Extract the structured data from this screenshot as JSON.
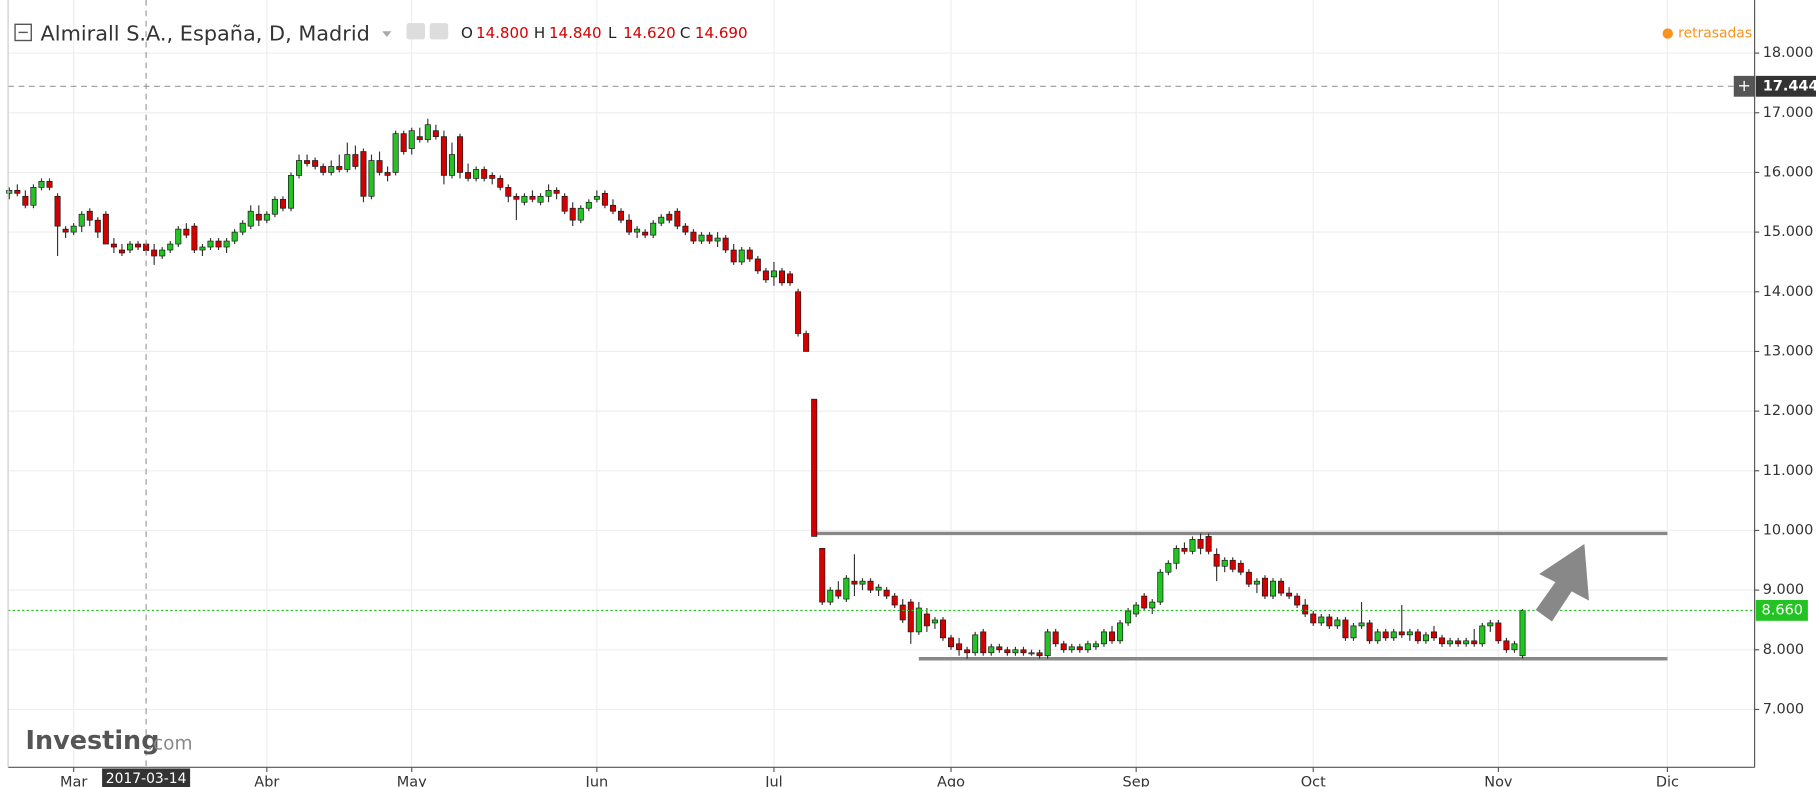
{
  "header": {
    "title": "Almirall S.A., España, D, Madrid",
    "ohlc_labels": [
      "O",
      "H",
      "L",
      "C"
    ],
    "ohlc_values": [
      "14.800",
      "14.840",
      "14.620",
      "14.690"
    ],
    "status": "retrasadas"
  },
  "logo": {
    "brand": "Investing",
    "suffix": ".com"
  },
  "chart_data": {
    "type": "candlestick",
    "categories": [
      null,
      null,
      null,
      null,
      null,
      null,
      null,
      null,
      "Mar",
      null,
      null,
      null,
      null,
      null,
      null,
      null,
      null,
      null,
      null,
      null,
      null,
      null,
      null,
      null,
      null,
      null,
      null,
      null,
      null,
      null,
      null,
      null,
      "Abr",
      null,
      null,
      null,
      null,
      null,
      null,
      null,
      null,
      null,
      null,
      null,
      null,
      null,
      null,
      null,
      null,
      null,
      "May",
      null,
      null,
      null,
      null,
      null,
      null,
      null,
      null,
      null,
      null,
      null,
      null,
      null,
      null,
      null,
      null,
      null,
      null,
      null,
      null,
      null,
      null,
      "Jun",
      null,
      null,
      null,
      null,
      null,
      null,
      null,
      null,
      null,
      null,
      null,
      null,
      null,
      null,
      null,
      null,
      null,
      null,
      null,
      null,
      null,
      "Jul",
      null,
      null,
      null,
      null,
      null,
      null,
      null,
      null,
      null,
      null,
      null,
      null,
      null,
      null,
      null,
      null,
      null,
      null,
      null,
      null,
      null,
      "Ago",
      null,
      null,
      null,
      null,
      null,
      null,
      null,
      null,
      null,
      null,
      null,
      null,
      null,
      null,
      null,
      null,
      null,
      null,
      null,
      null,
      null,
      null,
      "Sep",
      null,
      null,
      null,
      null,
      null,
      null,
      null,
      null,
      null,
      null,
      null,
      null,
      null,
      null,
      null,
      null,
      null,
      null,
      null,
      null,
      null,
      "Oct",
      null,
      null,
      null,
      null,
      null,
      null,
      null,
      null,
      null,
      null,
      null,
      null,
      null,
      null,
      null,
      null,
      null,
      null,
      null,
      null,
      null,
      null,
      "Nov",
      null,
      null,
      null,
      null,
      null,
      null,
      null,
      null,
      null,
      null,
      null,
      null,
      null,
      null,
      null,
      null,
      null,
      null,
      null,
      null,
      "Dic",
      null,
      null,
      null,
      null,
      null,
      null,
      null,
      null,
      null,
      null
    ],
    "ohlc": [
      [
        15.65,
        15.75,
        15.55,
        15.7
      ],
      [
        15.7,
        15.8,
        15.6,
        15.65
      ],
      [
        15.6,
        15.7,
        15.4,
        15.45
      ],
      [
        15.45,
        15.8,
        15.4,
        15.75
      ],
      [
        15.75,
        15.9,
        15.7,
        15.85
      ],
      [
        15.85,
        15.9,
        15.7,
        15.75
      ],
      [
        15.6,
        15.65,
        14.6,
        15.1
      ],
      [
        15.05,
        15.1,
        14.9,
        15.0
      ],
      [
        15.0,
        15.15,
        14.95,
        15.1
      ],
      [
        15.1,
        15.35,
        15.0,
        15.3
      ],
      [
        15.35,
        15.4,
        15.1,
        15.2
      ],
      [
        15.2,
        15.25,
        14.9,
        15.0
      ],
      [
        15.3,
        15.35,
        14.8,
        14.8
      ],
      [
        14.8,
        14.9,
        14.65,
        14.75
      ],
      [
        14.7,
        14.8,
        14.6,
        14.65
      ],
      [
        14.7,
        14.85,
        14.65,
        14.8
      ],
      [
        14.8,
        14.85,
        14.7,
        14.75
      ],
      [
        14.8,
        14.84,
        14.62,
        14.69
      ],
      [
        14.7,
        14.8,
        14.45,
        14.6
      ],
      [
        14.6,
        14.75,
        14.55,
        14.7
      ],
      [
        14.7,
        14.85,
        14.65,
        14.8
      ],
      [
        14.8,
        15.1,
        14.75,
        15.05
      ],
      [
        15.05,
        15.15,
        14.9,
        14.95
      ],
      [
        15.1,
        15.15,
        14.65,
        14.7
      ],
      [
        14.7,
        14.8,
        14.6,
        14.75
      ],
      [
        14.75,
        14.9,
        14.7,
        14.85
      ],
      [
        14.85,
        14.9,
        14.7,
        14.75
      ],
      [
        14.75,
        14.9,
        14.65,
        14.85
      ],
      [
        14.85,
        15.05,
        14.8,
        15.0
      ],
      [
        15.0,
        15.2,
        14.95,
        15.15
      ],
      [
        15.1,
        15.45,
        15.05,
        15.35
      ],
      [
        15.3,
        15.45,
        15.1,
        15.2
      ],
      [
        15.2,
        15.35,
        15.15,
        15.3
      ],
      [
        15.3,
        15.6,
        15.25,
        15.55
      ],
      [
        15.55,
        15.6,
        15.35,
        15.4
      ],
      [
        15.4,
        16.0,
        15.35,
        15.95
      ],
      [
        15.95,
        16.3,
        15.9,
        16.2
      ],
      [
        16.2,
        16.3,
        16.1,
        16.15
      ],
      [
        16.2,
        16.25,
        16.05,
        16.1
      ],
      [
        16.1,
        16.15,
        15.95,
        16.0
      ],
      [
        16.0,
        16.2,
        15.95,
        16.1
      ],
      [
        16.1,
        16.3,
        16.0,
        16.05
      ],
      [
        16.05,
        16.5,
        16.0,
        16.3
      ],
      [
        16.3,
        16.45,
        16.05,
        16.1
      ],
      [
        16.35,
        16.4,
        15.5,
        15.6
      ],
      [
        15.6,
        16.3,
        15.55,
        16.2
      ],
      [
        16.2,
        16.35,
        15.95,
        16.0
      ],
      [
        16.0,
        16.1,
        15.85,
        15.95
      ],
      [
        16.0,
        16.7,
        15.95,
        16.65
      ],
      [
        16.65,
        16.7,
        16.3,
        16.35
      ],
      [
        16.4,
        16.75,
        16.3,
        16.7
      ],
      [
        16.6,
        16.75,
        16.5,
        16.55
      ],
      [
        16.55,
        16.9,
        16.5,
        16.8
      ],
      [
        16.7,
        16.8,
        16.55,
        16.6
      ],
      [
        16.6,
        16.7,
        15.8,
        15.95
      ],
      [
        15.95,
        16.5,
        15.9,
        16.3
      ],
      [
        16.6,
        16.65,
        15.9,
        16.0
      ],
      [
        16.0,
        16.15,
        15.85,
        15.9
      ],
      [
        15.9,
        16.1,
        15.85,
        16.05
      ],
      [
        16.05,
        16.1,
        15.85,
        15.9
      ],
      [
        15.95,
        16.0,
        15.8,
        15.9
      ],
      [
        15.9,
        15.95,
        15.7,
        15.75
      ],
      [
        15.75,
        15.8,
        15.5,
        15.6
      ],
      [
        15.6,
        15.65,
        15.2,
        15.55
      ],
      [
        15.5,
        15.65,
        15.45,
        15.6
      ],
      [
        15.6,
        15.7,
        15.5,
        15.55
      ],
      [
        15.5,
        15.65,
        15.45,
        15.6
      ],
      [
        15.6,
        15.8,
        15.5,
        15.7
      ],
      [
        15.7,
        15.75,
        15.55,
        15.65
      ],
      [
        15.6,
        15.65,
        15.3,
        15.35
      ],
      [
        15.4,
        15.5,
        15.1,
        15.2
      ],
      [
        15.2,
        15.45,
        15.15,
        15.4
      ],
      [
        15.4,
        15.55,
        15.35,
        15.5
      ],
      [
        15.55,
        15.7,
        15.5,
        15.6
      ],
      [
        15.65,
        15.7,
        15.4,
        15.45
      ],
      [
        15.45,
        15.55,
        15.3,
        15.35
      ],
      [
        15.35,
        15.4,
        15.15,
        15.2
      ],
      [
        15.2,
        15.3,
        14.95,
        15.0
      ],
      [
        15.0,
        15.1,
        14.9,
        15.05
      ],
      [
        15.0,
        15.05,
        14.9,
        14.95
      ],
      [
        14.95,
        15.2,
        14.9,
        15.15
      ],
      [
        15.15,
        15.3,
        15.1,
        15.25
      ],
      [
        15.3,
        15.35,
        15.15,
        15.2
      ],
      [
        15.35,
        15.4,
        15.05,
        15.1
      ],
      [
        15.1,
        15.15,
        14.95,
        15.0
      ],
      [
        15.0,
        15.05,
        14.8,
        14.85
      ],
      [
        14.85,
        15.0,
        14.8,
        14.95
      ],
      [
        14.95,
        15.0,
        14.8,
        14.85
      ],
      [
        14.85,
        15.0,
        14.75,
        14.9
      ],
      [
        14.9,
        14.95,
        14.65,
        14.7
      ],
      [
        14.7,
        14.8,
        14.45,
        14.5
      ],
      [
        14.5,
        14.75,
        14.45,
        14.7
      ],
      [
        14.7,
        14.75,
        14.5,
        14.55
      ],
      [
        14.55,
        14.6,
        14.3,
        14.35
      ],
      [
        14.35,
        14.4,
        14.15,
        14.2
      ],
      [
        14.25,
        14.5,
        14.1,
        14.35
      ],
      [
        14.35,
        14.4,
        14.1,
        14.15
      ],
      [
        14.3,
        14.35,
        14.1,
        14.15
      ],
      [
        14.0,
        14.05,
        13.25,
        13.3
      ],
      [
        13.3,
        13.35,
        13.0,
        13.0
      ],
      [
        12.2,
        12.2,
        9.9,
        9.9
      ],
      [
        9.7,
        9.7,
        8.75,
        8.8
      ],
      [
        8.8,
        9.05,
        8.75,
        9.0
      ],
      [
        9.0,
        9.15,
        8.85,
        8.9
      ],
      [
        8.85,
        9.25,
        8.8,
        9.2
      ],
      [
        9.15,
        9.6,
        8.9,
        9.1
      ],
      [
        9.1,
        9.2,
        9.0,
        9.15
      ],
      [
        9.15,
        9.2,
        8.95,
        9.0
      ],
      [
        9.0,
        9.1,
        8.9,
        9.05
      ],
      [
        9.0,
        9.05,
        8.85,
        8.9
      ],
      [
        8.9,
        8.95,
        8.7,
        8.75
      ],
      [
        8.75,
        8.85,
        8.45,
        8.5
      ],
      [
        8.8,
        8.85,
        8.1,
        8.3
      ],
      [
        8.3,
        8.8,
        8.25,
        8.7
      ],
      [
        8.6,
        8.7,
        8.3,
        8.4
      ],
      [
        8.45,
        8.55,
        8.35,
        8.5
      ],
      [
        8.5,
        8.55,
        8.15,
        8.2
      ],
      [
        8.2,
        8.25,
        8.0,
        8.05
      ],
      [
        8.1,
        8.2,
        7.9,
        8.0
      ],
      [
        8.0,
        8.05,
        7.85,
        7.95
      ],
      [
        7.95,
        8.3,
        7.9,
        8.25
      ],
      [
        8.3,
        8.35,
        7.9,
        7.95
      ],
      [
        7.95,
        8.1,
        7.9,
        8.05
      ],
      [
        8.05,
        8.1,
        7.95,
        8.0
      ],
      [
        8.0,
        8.05,
        7.9,
        7.95
      ],
      [
        7.95,
        8.05,
        7.9,
        8.0
      ],
      [
        8.0,
        8.05,
        7.9,
        7.95
      ],
      [
        7.95,
        8.0,
        7.9,
        7.95
      ],
      [
        7.95,
        8.0,
        7.85,
        7.9
      ],
      [
        7.9,
        8.35,
        7.85,
        8.3
      ],
      [
        8.3,
        8.35,
        8.05,
        8.1
      ],
      [
        8.1,
        8.15,
        7.95,
        8.0
      ],
      [
        8.0,
        8.1,
        7.95,
        8.05
      ],
      [
        8.05,
        8.1,
        7.95,
        8.0
      ],
      [
        8.0,
        8.15,
        7.95,
        8.1
      ],
      [
        8.05,
        8.15,
        8.0,
        8.1
      ],
      [
        8.1,
        8.35,
        8.05,
        8.3
      ],
      [
        8.3,
        8.4,
        8.1,
        8.15
      ],
      [
        8.15,
        8.5,
        8.1,
        8.45
      ],
      [
        8.45,
        8.7,
        8.4,
        8.65
      ],
      [
        8.6,
        8.8,
        8.55,
        8.75
      ],
      [
        8.9,
        8.95,
        8.65,
        8.7
      ],
      [
        8.7,
        8.85,
        8.6,
        8.8
      ],
      [
        8.8,
        9.35,
        8.75,
        9.3
      ],
      [
        9.3,
        9.5,
        9.25,
        9.45
      ],
      [
        9.45,
        9.75,
        9.35,
        9.7
      ],
      [
        9.7,
        9.8,
        9.6,
        9.65
      ],
      [
        9.65,
        9.9,
        9.6,
        9.85
      ],
      [
        9.85,
        9.95,
        9.6,
        9.7
      ],
      [
        9.9,
        9.95,
        9.6,
        9.65
      ],
      [
        9.6,
        9.7,
        9.15,
        9.4
      ],
      [
        9.4,
        9.55,
        9.3,
        9.5
      ],
      [
        9.5,
        9.55,
        9.3,
        9.35
      ],
      [
        9.45,
        9.5,
        9.25,
        9.3
      ],
      [
        9.3,
        9.35,
        9.05,
        9.1
      ],
      [
        9.1,
        9.2,
        8.95,
        9.15
      ],
      [
        9.2,
        9.25,
        8.85,
        8.9
      ],
      [
        8.9,
        9.2,
        8.85,
        9.15
      ],
      [
        9.15,
        9.2,
        8.9,
        8.95
      ],
      [
        8.95,
        9.05,
        8.85,
        8.9
      ],
      [
        8.9,
        8.95,
        8.7,
        8.75
      ],
      [
        8.75,
        8.85,
        8.55,
        8.6
      ],
      [
        8.6,
        8.65,
        8.4,
        8.45
      ],
      [
        8.45,
        8.6,
        8.4,
        8.55
      ],
      [
        8.55,
        8.6,
        8.35,
        8.4
      ],
      [
        8.4,
        8.55,
        8.35,
        8.5
      ],
      [
        8.5,
        8.55,
        8.15,
        8.2
      ],
      [
        8.2,
        8.45,
        8.15,
        8.4
      ],
      [
        8.4,
        8.8,
        8.35,
        8.45
      ],
      [
        8.45,
        8.5,
        8.1,
        8.15
      ],
      [
        8.15,
        8.35,
        8.1,
        8.3
      ],
      [
        8.3,
        8.35,
        8.15,
        8.2
      ],
      [
        8.2,
        8.35,
        8.15,
        8.3
      ],
      [
        8.3,
        8.75,
        8.2,
        8.25
      ],
      [
        8.25,
        8.35,
        8.15,
        8.3
      ],
      [
        8.3,
        8.35,
        8.1,
        8.15
      ],
      [
        8.15,
        8.3,
        8.1,
        8.25
      ],
      [
        8.3,
        8.4,
        8.15,
        8.2
      ],
      [
        8.2,
        8.25,
        8.05,
        8.1
      ],
      [
        8.1,
        8.2,
        8.05,
        8.15
      ],
      [
        8.15,
        8.2,
        8.05,
        8.1
      ],
      [
        8.1,
        8.2,
        8.05,
        8.15
      ],
      [
        8.15,
        8.35,
        8.05,
        8.1
      ],
      [
        8.1,
        8.45,
        8.05,
        8.4
      ],
      [
        8.4,
        8.5,
        8.3,
        8.45
      ],
      [
        8.45,
        8.5,
        8.1,
        8.15
      ],
      [
        8.15,
        8.2,
        7.95,
        8.0
      ],
      [
        8.0,
        8.15,
        7.95,
        8.1
      ],
      [
        7.9,
        8.68,
        7.85,
        8.66
      ],
      null,
      null,
      null,
      null,
      null,
      null,
      null,
      null,
      null,
      null,
      null,
      null,
      null,
      null,
      null,
      null,
      null,
      null,
      null,
      null,
      null,
      null,
      null,
      null,
      null,
      null,
      null,
      null
    ],
    "up_color": "#22c322",
    "down_color": "#d40000",
    "ylim": [
      6.03,
      18.89
    ],
    "yticks": [
      {
        "value": 7,
        "label": "7.000"
      },
      {
        "value": 8,
        "label": "8.000"
      },
      {
        "value": 9,
        "label": "9.000"
      },
      {
        "value": 10,
        "label": "10.000"
      },
      {
        "value": 11,
        "label": "11.000"
      },
      {
        "value": 12,
        "label": "12.000"
      },
      {
        "value": 13,
        "label": "13.000"
      },
      {
        "value": 14,
        "label": "14.000"
      },
      {
        "value": 15,
        "label": "15.000"
      },
      {
        "value": 16,
        "label": "16.000"
      },
      {
        "value": 17,
        "label": "17.000"
      },
      {
        "value": 18,
        "label": "18.000"
      }
    ],
    "grid": true,
    "crosshair": {
      "x": "2017-03-14",
      "y": {
        "value": 17.444,
        "label": "17.444"
      }
    },
    "last_price": {
      "value": 8.66,
      "label": "8.660"
    },
    "levels": [
      9.95,
      7.85
    ]
  }
}
